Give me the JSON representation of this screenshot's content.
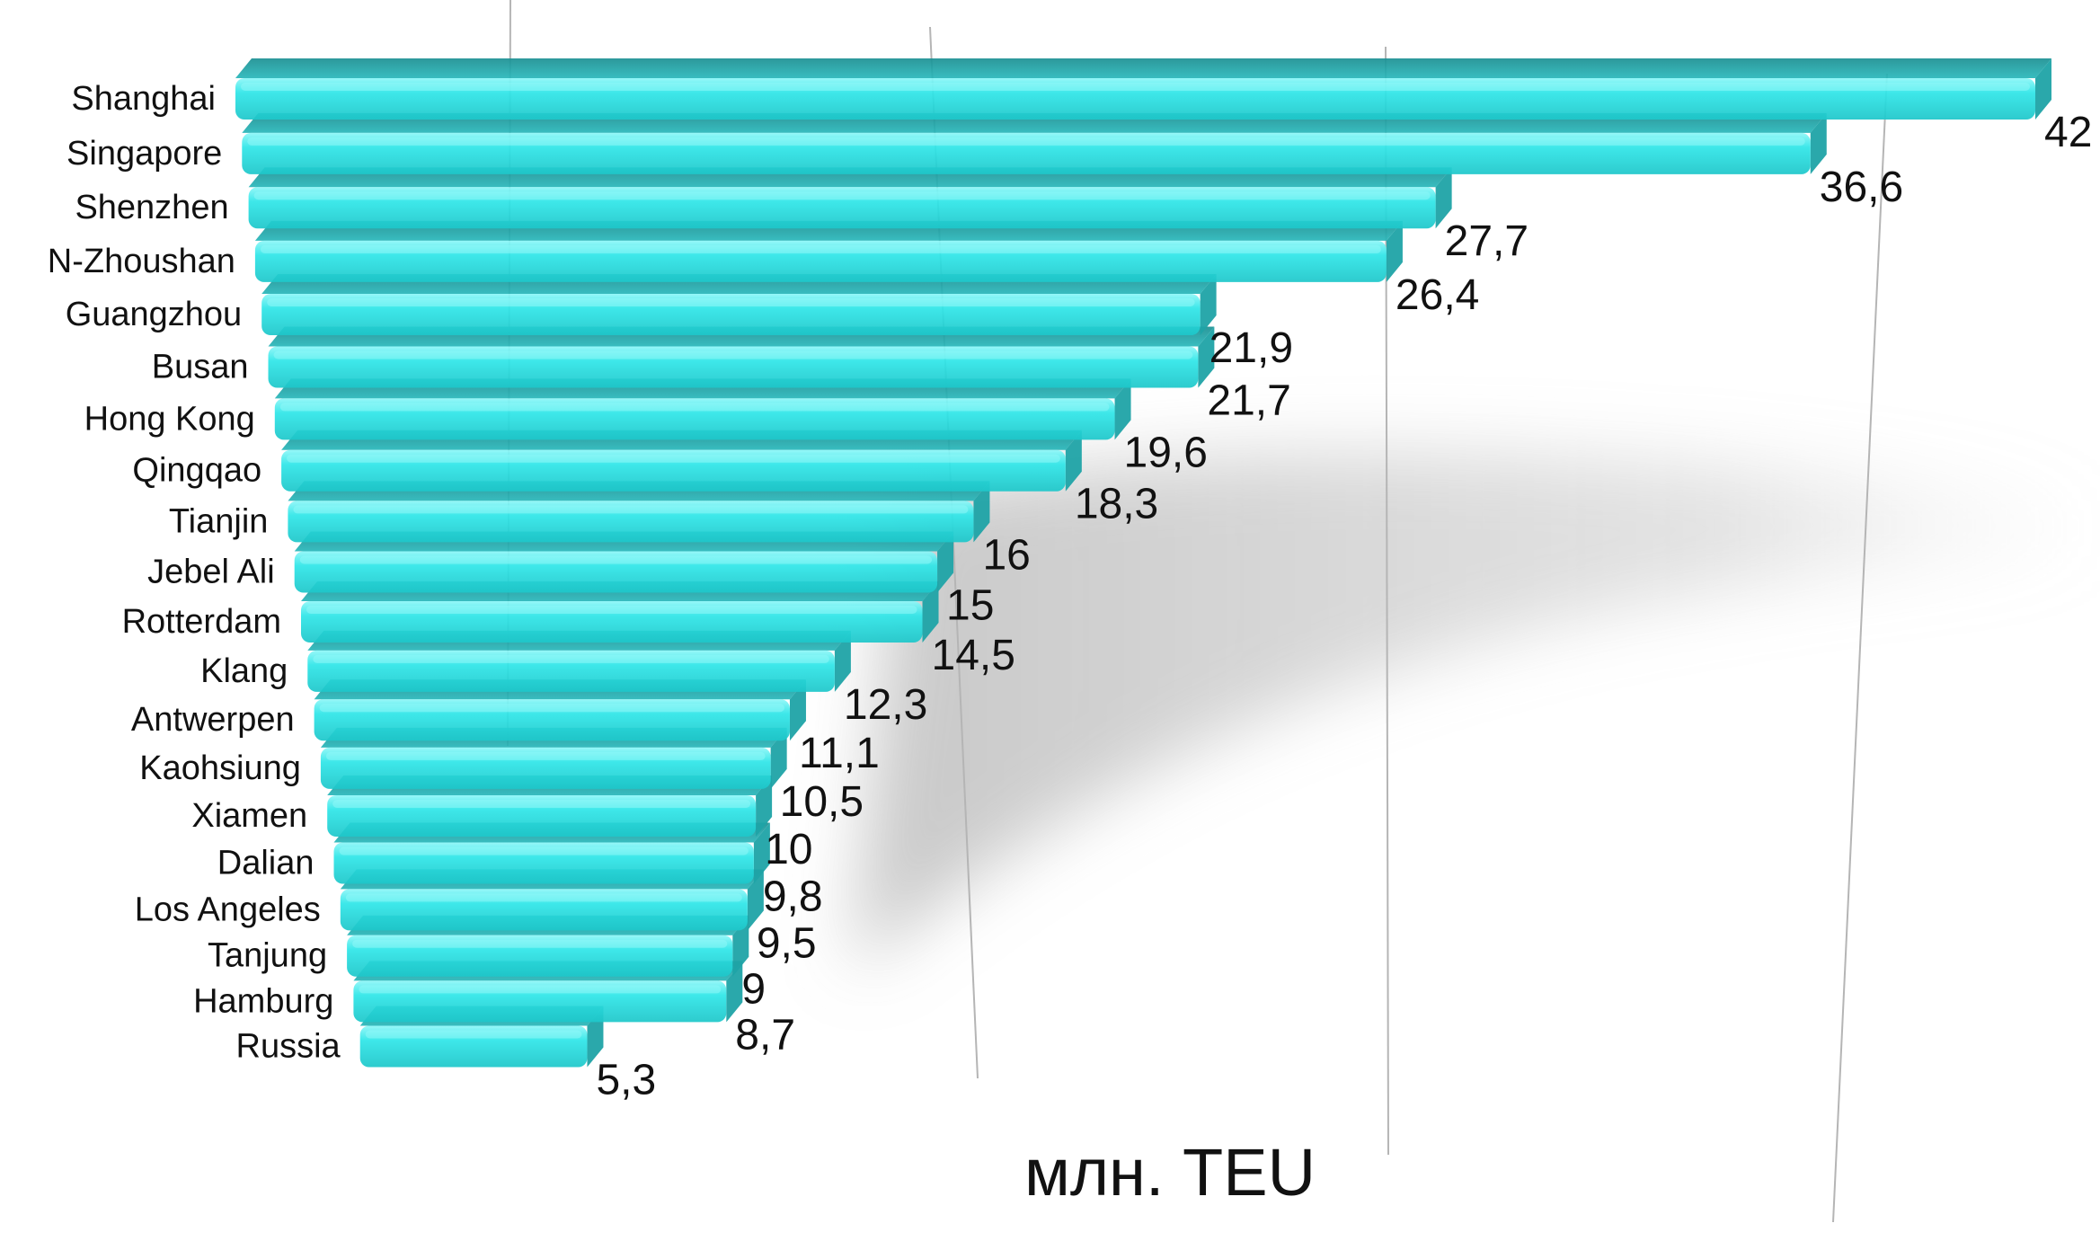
{
  "chart_data": {
    "type": "bar",
    "orientation": "horizontal",
    "categories": [
      "Shanghai",
      "Singapore",
      "Shenzhen",
      "N-Zhoushan",
      "Guangzhou",
      "Busan",
      "Hong Kong",
      "Qingqao",
      "Tianjin",
      "Jebel Ali",
      "Rotterdam",
      "Klang",
      "Antwerpen",
      "Kaohsiung",
      "Xiamen",
      "Dalian",
      "Los Angeles",
      "Tanjung",
      "Hamburg",
      "Russia"
    ],
    "values": [
      42,
      36.6,
      27.7,
      26.4,
      21.9,
      21.7,
      19.6,
      18.3,
      16,
      15,
      14.5,
      12.3,
      11.1,
      10.5,
      10,
      9.8,
      9.5,
      9,
      8.7,
      5.3
    ],
    "value_labels": [
      "42",
      "36,6",
      "27,7",
      "26,4",
      "21,9",
      "21,7",
      "19,6",
      "18,3",
      "16",
      "15",
      "14,5",
      "12,3",
      "11,1",
      "10,5",
      "10",
      "9,8",
      "9,5",
      "9",
      "8,7",
      "5,3"
    ],
    "unit_label": "млн. TEU",
    "xlim": [
      0,
      42
    ],
    "grid": true,
    "bar_color": "#2fe6e8",
    "bar_side_color": "#1fa3a6",
    "bar_highlight_color": "#8ff7f8"
  }
}
